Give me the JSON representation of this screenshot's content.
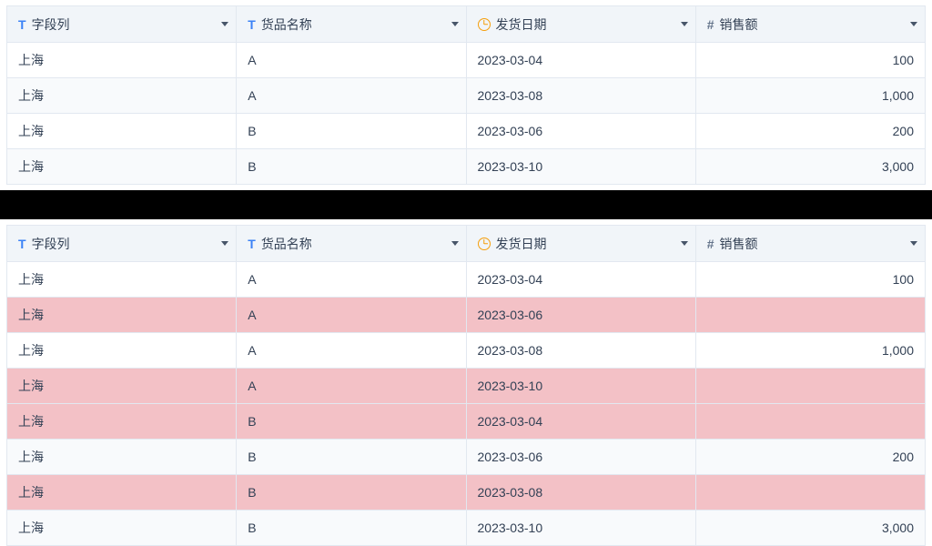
{
  "columns": [
    {
      "key": "field",
      "label": "字段列",
      "type": "text",
      "align": "left"
    },
    {
      "key": "product",
      "label": "货品名称",
      "type": "text",
      "align": "left"
    },
    {
      "key": "date",
      "label": "发货日期",
      "type": "date",
      "align": "left"
    },
    {
      "key": "sales",
      "label": "销售额",
      "type": "number",
      "align": "right"
    }
  ],
  "colors": {
    "header_bg": "#f1f5f9",
    "border": "#e2e8f0",
    "text": "#334155",
    "zebra_bg": "#f8fafc",
    "highlight_bg": "#f3c1c6",
    "type_text": "#3b82f6",
    "type_date": "#f59e0b",
    "type_num": "#64748b",
    "caret": "#475569",
    "divider": "#000000"
  },
  "column_widths_pct": [
    25,
    25,
    25,
    25
  ],
  "table1": {
    "rows": [
      {
        "field": "上海",
        "product": "A",
        "date": "2023-03-04",
        "sales": "100",
        "highlight": false
      },
      {
        "field": "上海",
        "product": "A",
        "date": "2023-03-08",
        "sales": "1,000",
        "highlight": false
      },
      {
        "field": "上海",
        "product": "B",
        "date": "2023-03-06",
        "sales": "200",
        "highlight": false
      },
      {
        "field": "上海",
        "product": "B",
        "date": "2023-03-10",
        "sales": "3,000",
        "highlight": false
      }
    ]
  },
  "table2": {
    "rows": [
      {
        "field": "上海",
        "product": "A",
        "date": "2023-03-04",
        "sales": "100",
        "highlight": false
      },
      {
        "field": "上海",
        "product": "A",
        "date": "2023-03-06",
        "sales": "",
        "highlight": true
      },
      {
        "field": "上海",
        "product": "A",
        "date": "2023-03-08",
        "sales": "1,000",
        "highlight": false
      },
      {
        "field": "上海",
        "product": "A",
        "date": "2023-03-10",
        "sales": "",
        "highlight": true
      },
      {
        "field": "上海",
        "product": "B",
        "date": "2023-03-04",
        "sales": "",
        "highlight": true
      },
      {
        "field": "上海",
        "product": "B",
        "date": "2023-03-06",
        "sales": "200",
        "highlight": false
      },
      {
        "field": "上海",
        "product": "B",
        "date": "2023-03-08",
        "sales": "",
        "highlight": true
      },
      {
        "field": "上海",
        "product": "B",
        "date": "2023-03-10",
        "sales": "3,000",
        "highlight": false
      }
    ]
  }
}
